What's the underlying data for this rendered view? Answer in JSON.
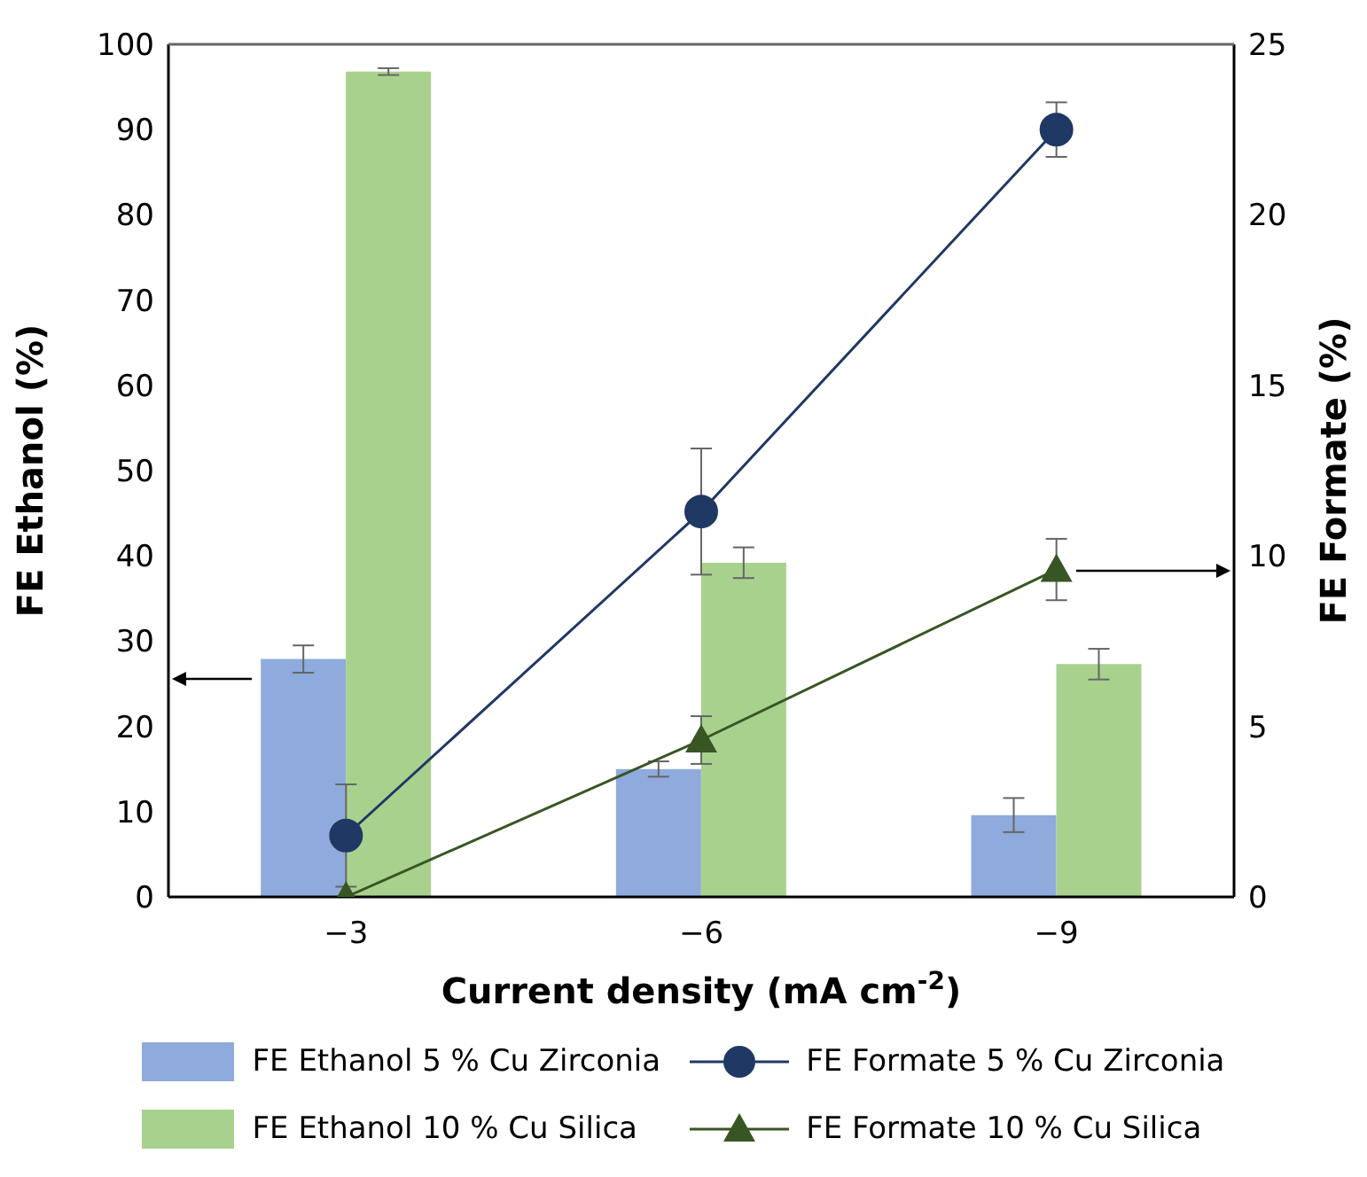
{
  "chart_data": {
    "type": "bar",
    "xlabel": "Current density (mA cm$^{-2}$)",
    "ylabel": "FE Ethanol (%)",
    "y2label": "FE Formate (%)",
    "categories": [
      "−3",
      "−6",
      "−9"
    ],
    "series": [
      {
        "name": "FE Ethanol 5 % Cu Zirconia",
        "color": "#8faadc",
        "values": [
          27.9,
          15.0,
          9.6
        ],
        "errors": [
          1.6,
          0.9,
          2.0
        ]
      },
      {
        "name": "FE Ethanol 10 % Cu Silica",
        "color": "#a9d18e",
        "values": [
          96.8,
          39.2,
          27.3
        ],
        "errors": [
          0.4,
          1.8,
          1.8
        ]
      },
      {
        "name": "FE Formate 5 % Cu Zirconia",
        "type": "line",
        "axis": "y2",
        "marker": "circle",
        "color": "#203864",
        "values": [
          1.8,
          11.3,
          22.5
        ],
        "errors": [
          1.5,
          1.85,
          0.8
        ]
      },
      {
        "name": "FE Formate 10 % Cu Silica",
        "type": "line",
        "axis": "y2",
        "marker": "triangle",
        "color": "#375623",
        "values": [
          0,
          4.6,
          9.6
        ],
        "errors": [
          null,
          0.7,
          0.9
        ]
      }
    ],
    "ylim": [
      0,
      100
    ],
    "yticks": [
      0,
      10,
      20,
      30,
      40,
      50,
      60,
      70,
      80,
      90,
      100
    ],
    "y2lim": [
      0,
      25
    ],
    "y2ticks": [
      0,
      5,
      10,
      15,
      20,
      25
    ],
    "legend": "bottom"
  }
}
